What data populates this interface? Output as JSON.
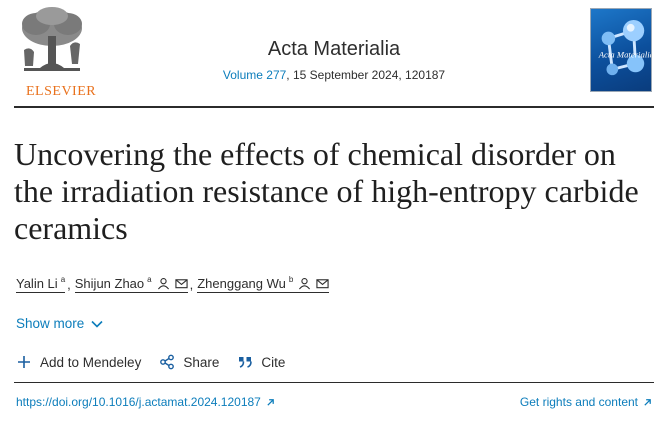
{
  "publisher": {
    "name": "ELSEVIER"
  },
  "journal": {
    "title": "Acta Materialia",
    "volume_link": "Volume 277",
    "meta_rest": ", 15 September 2024, 120187",
    "cover_title": "Acta Materialia"
  },
  "article": {
    "title": "Uncovering the effects of chemical disorder on the irradiation resistance of high-entropy carbide ceramics"
  },
  "authors": [
    {
      "name": "Yalin Li",
      "affil": "a",
      "sep": ","
    },
    {
      "name": "Shijun Zhao",
      "affil": "a",
      "sep": ","
    },
    {
      "name": "Zhenggang Wu",
      "affil": "b",
      "sep": ""
    }
  ],
  "show_more": {
    "label": "Show more"
  },
  "actions": {
    "mendeley": "Add to Mendeley",
    "share": "Share",
    "cite": "Cite"
  },
  "links": {
    "doi": "https://doi.org/10.1016/j.actamat.2024.120187",
    "rights": "Get rights and content"
  },
  "colors": {
    "link": "#0c7dbb",
    "publisher": "#e9711c",
    "text": "#2e2e2e"
  },
  "icons": [
    "elsevier-tree-logo",
    "person-icon",
    "envelope-icon",
    "chevron-down-icon",
    "plus-icon",
    "share-icon",
    "quote-icon",
    "external-arrow-icon"
  ]
}
